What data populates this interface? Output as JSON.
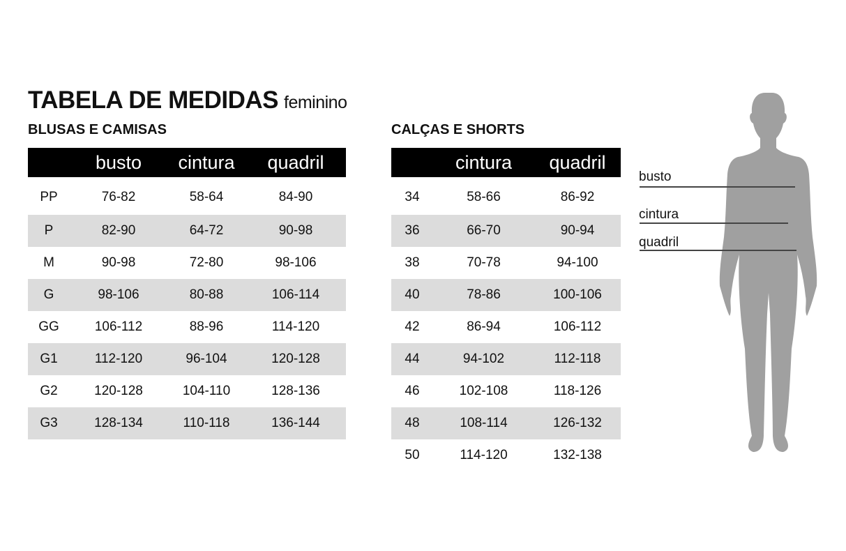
{
  "title": "TABELA DE MEDIDAS",
  "subtitle": "feminino",
  "blusas": {
    "heading": "BLUSAS E CAMISAS",
    "columns": [
      "",
      "busto",
      "cintura",
      "quadril"
    ],
    "rows": [
      [
        "PP",
        "76-82",
        "58-64",
        "84-90"
      ],
      [
        "P",
        "82-90",
        "64-72",
        "90-98"
      ],
      [
        "M",
        "90-98",
        "72-80",
        "98-106"
      ],
      [
        "G",
        "98-106",
        "80-88",
        "106-114"
      ],
      [
        "GG",
        "106-112",
        "88-96",
        "114-120"
      ],
      [
        "G1",
        "112-120",
        "96-104",
        "120-128"
      ],
      [
        "G2",
        "120-128",
        "104-110",
        "128-136"
      ],
      [
        "G3",
        "128-134",
        "110-118",
        "136-144"
      ]
    ]
  },
  "calcas": {
    "heading": "CALÇAS E SHORTS",
    "columns": [
      "",
      "cintura",
      "quadril"
    ],
    "rows": [
      [
        "34",
        "58-66",
        "86-92"
      ],
      [
        "36",
        "66-70",
        "90-94"
      ],
      [
        "38",
        "70-78",
        "94-100"
      ],
      [
        "40",
        "78-86",
        "100-106"
      ],
      [
        "42",
        "86-94",
        "106-112"
      ],
      [
        "44",
        "94-102",
        "112-118"
      ],
      [
        "46",
        "102-108",
        "118-126"
      ],
      [
        "48",
        "108-114",
        "126-132"
      ],
      [
        "50",
        "114-120",
        "132-138"
      ]
    ]
  },
  "figure": {
    "labels": {
      "busto": "busto",
      "cintura": "cintura",
      "quadril": "quadril"
    },
    "silhouette_color": "#a0a0a0",
    "stripe_color": "#dcdcdc"
  }
}
